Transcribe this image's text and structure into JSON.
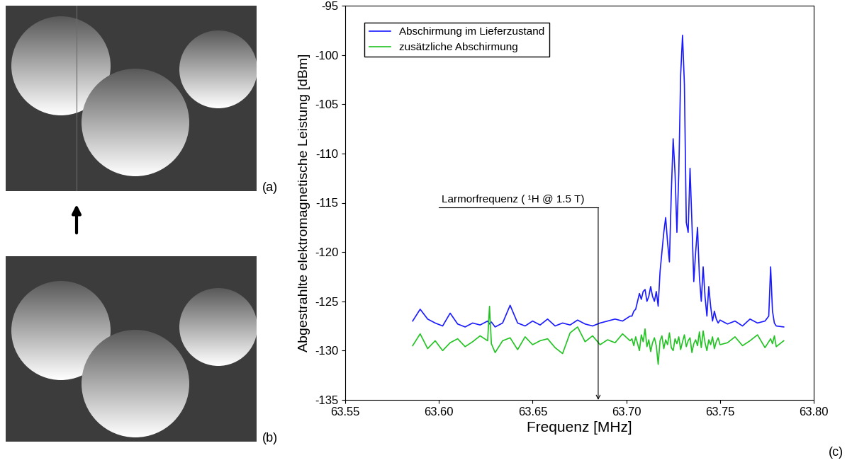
{
  "chart_data": {
    "type": "line",
    "panel_label": "(c)",
    "x_label": "Frequenz [MHz]",
    "y_label": "Abgestrahlte elektromagnetische Leistung [dBm]",
    "xlim": [
      63.55,
      63.8
    ],
    "xticks": [
      63.55,
      {
        "value": 63.6,
        "label": "63.60"
      },
      63.65,
      {
        "value": 63.7,
        "label": "63.70"
      },
      63.75,
      {
        "value": 63.8,
        "label": "63.80"
      }
    ],
    "ylim": [
      -135,
      -95
    ],
    "yticks": [
      -135,
      -130,
      -125,
      -120,
      -115,
      -110,
      -105,
      -100,
      -95
    ],
    "legend": "upper left",
    "annotations": [
      {
        "text": "Larmorfrequenz ( ¹H @ 1.5 T)",
        "x": 63.685,
        "y": -115.5,
        "text_x": 63.6
      }
    ],
    "x": [
      63.586,
      63.59,
      63.594,
      63.598,
      63.602,
      63.606,
      63.61,
      63.614,
      63.618,
      63.622,
      63.626,
      63.627,
      63.628,
      63.63,
      63.634,
      63.638,
      63.642,
      63.646,
      63.65,
      63.654,
      63.658,
      63.662,
      63.666,
      63.67,
      63.674,
      63.678,
      63.682,
      63.686,
      63.69,
      63.694,
      63.698,
      63.702,
      63.703,
      63.704,
      63.705,
      63.706,
      63.707,
      63.708,
      63.709,
      63.71,
      63.711,
      63.712,
      63.713,
      63.714,
      63.715,
      63.716,
      63.717,
      63.718,
      63.719,
      63.72,
      63.721,
      63.722,
      63.723,
      63.724,
      63.725,
      63.726,
      63.727,
      63.728,
      63.729,
      63.73,
      63.731,
      63.732,
      63.733,
      63.734,
      63.735,
      63.736,
      63.737,
      63.738,
      63.739,
      63.74,
      63.741,
      63.742,
      63.743,
      63.744,
      63.745,
      63.746,
      63.747,
      63.748,
      63.749,
      63.75,
      63.754,
      63.758,
      63.762,
      63.766,
      63.77,
      63.774,
      63.776,
      63.777,
      63.778,
      63.779,
      63.78,
      63.784
    ],
    "series": [
      {
        "name": "Abschirmung im Lieferzustand",
        "color": "#1a1aff",
        "values": [
          -127,
          -125.8,
          -126.8,
          -127.2,
          -127.5,
          -126.2,
          -127.3,
          -127.6,
          -127.2,
          -127.4,
          -127,
          -127.3,
          -127.1,
          -127.6,
          -127.2,
          -125.4,
          -127.2,
          -127.5,
          -127,
          -127.4,
          -126.8,
          -127.5,
          -127.2,
          -127.4,
          -126.9,
          -127.3,
          -127.5,
          -127.2,
          -127,
          -126.8,
          -127,
          -126.5,
          -126.5,
          -126,
          -125.8,
          -125,
          -124.2,
          -124.8,
          -124,
          -123.8,
          -125,
          -124.5,
          -123.5,
          -124.5,
          -125,
          -124,
          -125.5,
          -122,
          -120,
          -118,
          -116.5,
          -119,
          -121,
          -114,
          -108.5,
          -112,
          -118,
          -112,
          -102,
          -98,
          -103,
          -117,
          -118,
          -111.5,
          -117,
          -123,
          -120,
          -117.5,
          -122.5,
          -125,
          -121.5,
          -124.5,
          -126.5,
          -123.5,
          -125.5,
          -127,
          -126,
          -126.8,
          -127.2,
          -126.9,
          -127.3,
          -127,
          -127.5,
          -126.8,
          -127.2,
          -127,
          -126.5,
          -121.5,
          -126,
          -127.2,
          -127.5,
          -127.6
        ]
      },
      {
        "name": "zusätzliche Abschirmung",
        "color": "#22c322",
        "values": [
          -129.5,
          -128.3,
          -129.8,
          -129,
          -130,
          -129.2,
          -128.8,
          -129.6,
          -129.1,
          -128.5,
          -129,
          -125.5,
          -129.3,
          -130.2,
          -129,
          -128.7,
          -129.9,
          -128.6,
          -129.4,
          -129,
          -128.8,
          -129.7,
          -130.3,
          -128.2,
          -127.6,
          -129.1,
          -128.5,
          -129.4,
          -128.9,
          -129.2,
          -128.3,
          -129,
          -128.8,
          -129.5,
          -128.6,
          -129.3,
          -130,
          -128.4,
          -129.1,
          -127.8,
          -129.6,
          -128.9,
          -130.1,
          -129.2,
          -128.7,
          -129.5,
          -131.4,
          -129,
          -128.5,
          -129.8,
          -128.9,
          -129.4,
          -128.2,
          -129.7,
          -130,
          -128.8,
          -129.3,
          -128.6,
          -129.9,
          -129.1,
          -128.4,
          -129.6,
          -129,
          -128.7,
          -130.2,
          -129.3,
          -128.9,
          -129.5,
          -128.1,
          -129.7,
          -128,
          -129.2,
          -130,
          -128.9,
          -129.4,
          -128.6,
          -129.8,
          -129.1,
          -128.7,
          -129.4,
          -129.2,
          -128.6,
          -129.5,
          -129,
          -128.4,
          -129.7,
          -129.1,
          -128.8,
          -129.3,
          -128.5,
          -129.6,
          -129
        ]
      }
    ]
  },
  "images": {
    "labels": [
      "(a)",
      "(b)"
    ]
  }
}
